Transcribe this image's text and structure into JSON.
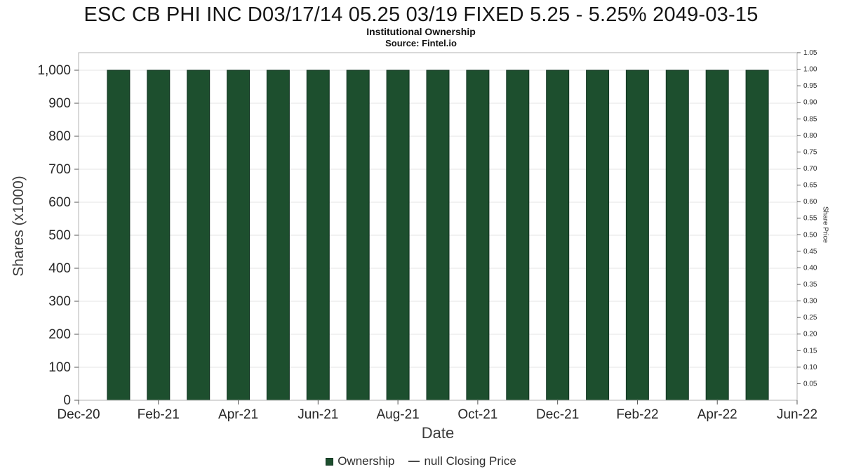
{
  "chart_data": {
    "type": "bar",
    "title": "ESC CB PHI INC D03/17/14 05.25 03/19 FIXED 5.25 - 5.25% 2049-03-15",
    "subtitle": "Institutional Ownership",
    "source": "Source: Fintel.io",
    "xlabel": "Date",
    "ylabel_left": "Shares (x1000)",
    "ylabel_right": "Share Price",
    "categories": [
      "Jan-21",
      "Feb-21",
      "Mar-21",
      "Apr-21",
      "May-21",
      "Jun-21",
      "Jul-21",
      "Aug-21",
      "Sep-21",
      "Oct-21",
      "Nov-21",
      "Dec-21",
      "Jan-22",
      "Feb-22",
      "Mar-22",
      "Apr-22",
      "May-22"
    ],
    "values": [
      1000,
      1000,
      1000,
      1000,
      1000,
      1000,
      1000,
      1000,
      1000,
      1000,
      1000,
      1000,
      1000,
      1000,
      1000,
      1000,
      1000
    ],
    "x_ticks": [
      "Dec-20",
      "Feb-21",
      "Apr-21",
      "Jun-21",
      "Aug-21",
      "Oct-21",
      "Dec-21",
      "Feb-22",
      "Apr-22",
      "Jun-22"
    ],
    "y_left_ticks": [
      "0",
      "100",
      "200",
      "300",
      "400",
      "500",
      "600",
      "700",
      "800",
      "900",
      "1,000"
    ],
    "y_left_range": [
      0,
      1000
    ],
    "y_right_ticks": [
      "0.05",
      "0.10",
      "0.15",
      "0.20",
      "0.25",
      "0.30",
      "0.35",
      "0.40",
      "0.45",
      "0.50",
      "0.55",
      "0.60",
      "0.65",
      "0.70",
      "0.75",
      "0.80",
      "0.85",
      "0.90",
      "0.95",
      "1.00",
      "1.05"
    ],
    "y_right_range": [
      0,
      1.05
    ],
    "grid": "horizontal",
    "bar_color": "#1d4f2e",
    "bar_edge_color": "#123322",
    "legend": [
      {
        "label": "Ownership",
        "marker": "square",
        "color": "#1d4f2e"
      },
      {
        "label": "null Closing Price",
        "marker": "line",
        "color": "#4a4a4a"
      }
    ]
  }
}
